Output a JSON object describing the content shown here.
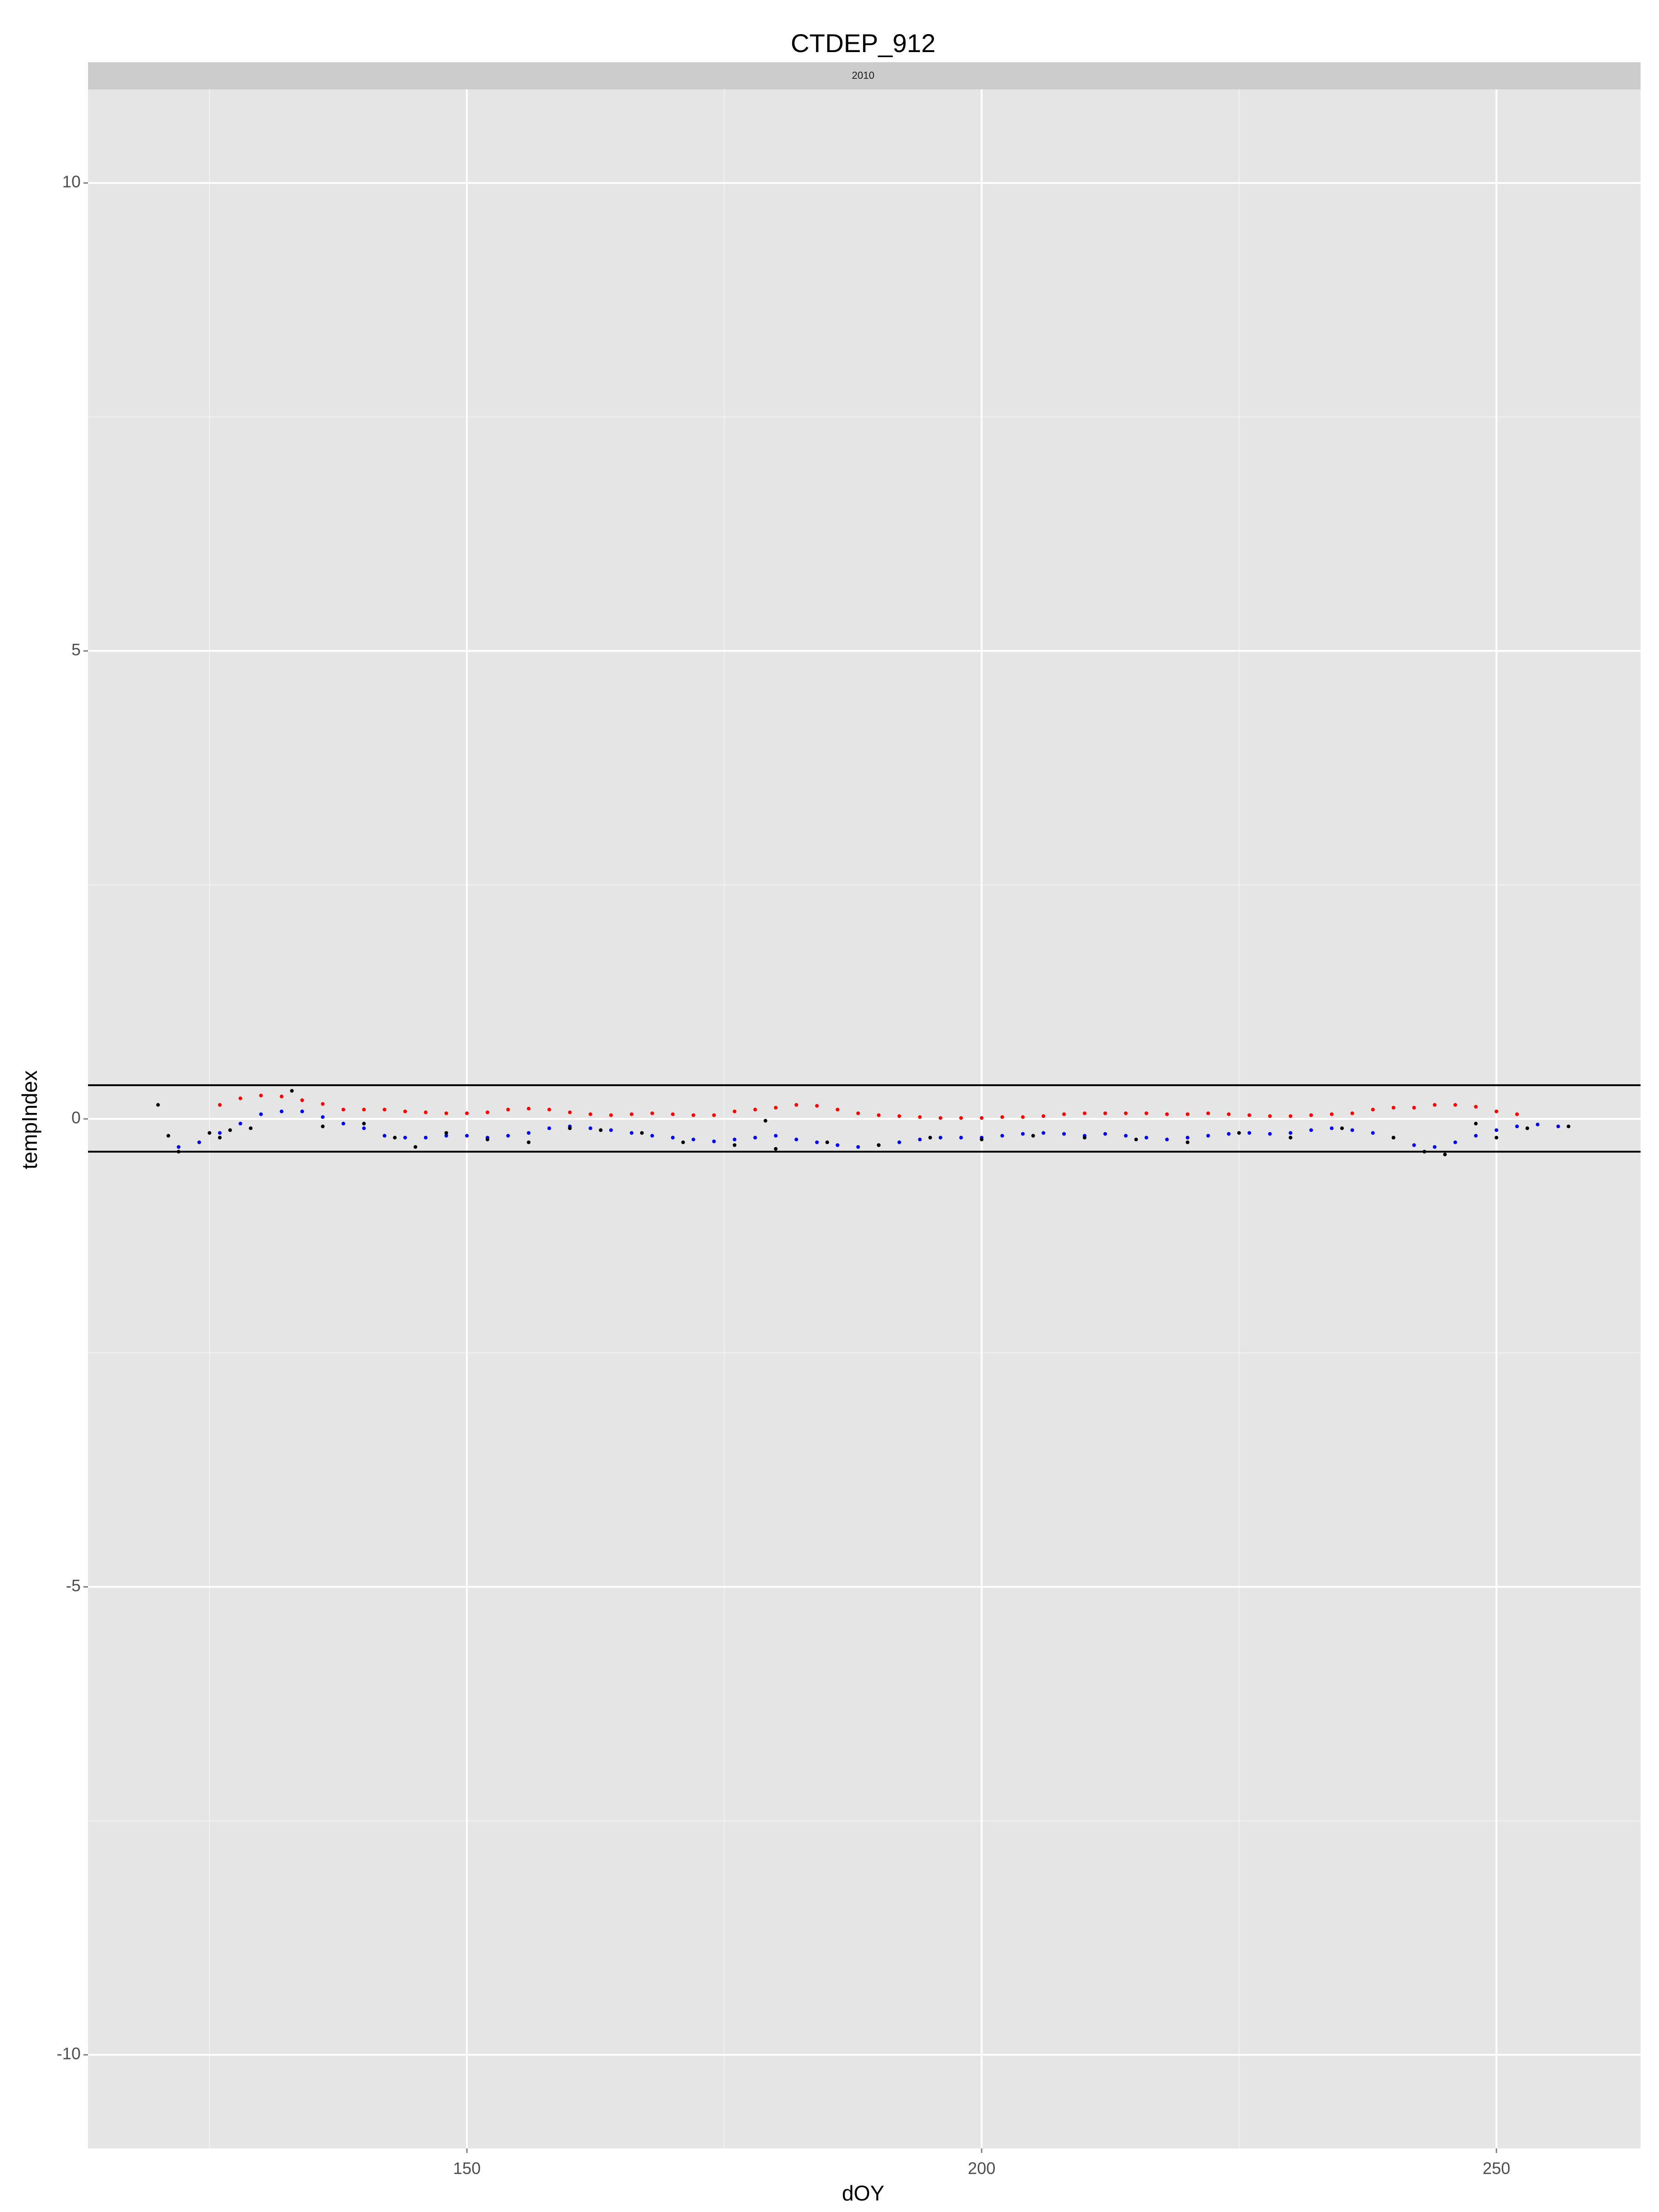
{
  "chart_data": {
    "type": "scatter",
    "title": "CTDEP_912",
    "facet_label": "2010",
    "x_label": "dOY",
    "y_label": "tempIndex",
    "xlim": [
      113.2,
      264.0
    ],
    "ylim": [
      -11,
      11
    ],
    "xticks": [
      150,
      200,
      250
    ],
    "yticks": [
      -10,
      -5,
      0,
      5,
      10
    ],
    "x_minor_grid": [
      125,
      175,
      225
    ],
    "y_minor_grid": [
      -7.5,
      -2.5,
      2.5,
      7.5
    ],
    "grid": true,
    "hlines": [
      0.36,
      -0.35
    ],
    "series": [
      {
        "color": "#ff0000",
        "x": [
          126,
          128,
          130,
          132,
          134,
          136,
          138,
          140,
          142,
          144,
          146,
          148,
          150,
          152,
          154,
          156,
          158,
          160,
          162,
          164,
          166,
          168,
          170,
          172,
          174,
          176,
          178,
          180,
          182,
          184,
          186,
          188,
          190,
          192,
          194,
          196,
          198,
          200,
          202,
          204,
          206,
          208,
          210,
          212,
          214,
          216,
          218,
          220,
          222,
          224,
          226,
          228,
          230,
          232,
          234,
          236,
          238,
          240,
          242,
          244,
          246,
          248,
          250,
          252
        ],
        "values": [
          0.15,
          0.22,
          0.25,
          0.24,
          0.2,
          0.16,
          0.1,
          0.1,
          0.1,
          0.08,
          0.07,
          0.06,
          0.06,
          0.07,
          0.1,
          0.11,
          0.1,
          0.07,
          0.05,
          0.04,
          0.05,
          0.06,
          0.05,
          0.04,
          0.04,
          0.08,
          0.1,
          0.12,
          0.15,
          0.14,
          0.1,
          0.06,
          0.04,
          0.03,
          0.02,
          0.01,
          0.01,
          0.01,
          0.02,
          0.02,
          0.03,
          0.05,
          0.06,
          0.06,
          0.06,
          0.06,
          0.05,
          0.05,
          0.06,
          0.05,
          0.04,
          0.03,
          0.03,
          0.04,
          0.05,
          0.06,
          0.1,
          0.12,
          0.12,
          0.15,
          0.15,
          0.13,
          0.08,
          0.05
        ]
      },
      {
        "color": "#0000ff",
        "x": [
          122,
          124,
          126,
          128,
          130,
          132,
          134,
          136,
          138,
          140,
          142,
          144,
          146,
          148,
          150,
          152,
          154,
          156,
          158,
          160,
          162,
          164,
          166,
          168,
          170,
          172,
          174,
          176,
          178,
          180,
          182,
          184,
          186,
          188,
          190,
          192,
          194,
          196,
          198,
          200,
          202,
          204,
          206,
          208,
          210,
          212,
          214,
          216,
          218,
          220,
          222,
          224,
          226,
          228,
          230,
          232,
          234,
          236,
          238,
          240,
          242,
          244,
          246,
          248,
          250,
          252,
          254,
          256
        ],
        "values": [
          -0.3,
          -0.25,
          -0.15,
          -0.05,
          0.05,
          0.08,
          0.08,
          0.02,
          -0.05,
          -0.1,
          -0.18,
          -0.2,
          -0.2,
          -0.18,
          -0.18,
          -0.2,
          -0.18,
          -0.15,
          -0.1,
          -0.08,
          -0.1,
          -0.12,
          -0.15,
          -0.18,
          -0.2,
          -0.22,
          -0.24,
          -0.22,
          -0.2,
          -0.18,
          -0.22,
          -0.25,
          -0.28,
          -0.3,
          -0.28,
          -0.25,
          -0.22,
          -0.2,
          -0.2,
          -0.2,
          -0.18,
          -0.16,
          -0.15,
          -0.16,
          -0.18,
          -0.16,
          -0.18,
          -0.2,
          -0.22,
          -0.2,
          -0.18,
          -0.16,
          -0.15,
          -0.16,
          -0.15,
          -0.12,
          -0.1,
          -0.12,
          -0.15,
          -0.2,
          -0.28,
          -0.3,
          -0.25,
          -0.18,
          -0.12,
          -0.08,
          -0.06,
          -0.08
        ]
      },
      {
        "color": "#000000",
        "x": [
          120,
          121,
          122,
          125,
          126,
          127,
          129,
          133,
          136,
          140,
          143,
          145,
          148,
          152,
          156,
          160,
          163,
          167,
          171,
          176,
          179,
          180,
          185,
          190,
          195,
          200,
          205,
          210,
          215,
          220,
          225,
          230,
          235,
          240,
          243,
          245,
          248,
          250,
          253,
          257
        ],
        "values": [
          0.15,
          -0.18,
          -0.35,
          -0.15,
          -0.2,
          -0.12,
          -0.1,
          0.3,
          -0.08,
          -0.05,
          -0.2,
          -0.3,
          -0.15,
          -0.22,
          -0.25,
          -0.1,
          -0.12,
          -0.15,
          -0.25,
          -0.28,
          -0.02,
          -0.32,
          -0.25,
          -0.28,
          -0.2,
          -0.22,
          -0.18,
          -0.2,
          -0.22,
          -0.25,
          -0.15,
          -0.2,
          -0.1,
          -0.2,
          -0.35,
          -0.38,
          -0.05,
          -0.2,
          -0.1,
          -0.08
        ]
      }
    ]
  }
}
